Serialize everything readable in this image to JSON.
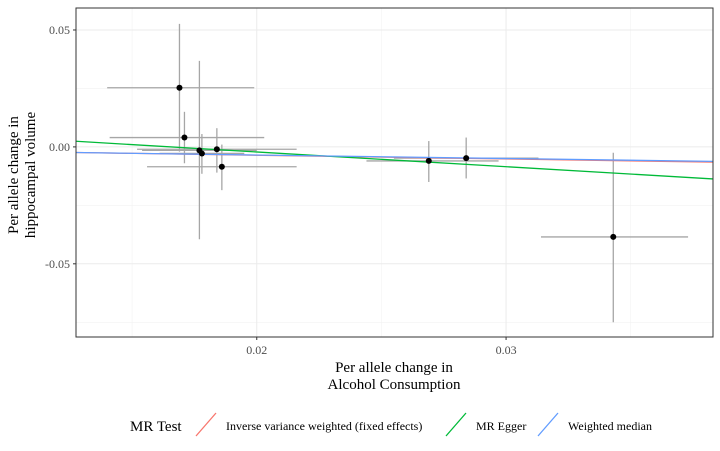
{
  "chart_data": {
    "type": "scatter",
    "title": "",
    "xlabel": [
      "Per allele change in",
      "Alcohol Consumption"
    ],
    "ylabel": [
      "Per allele change in",
      "hippocampal volume"
    ],
    "xlim": [
      0.01275,
      0.0383
    ],
    "ylim": [
      -0.0813,
      0.0594
    ],
    "x_ticks": [
      0.02,
      0.03
    ],
    "x_tick_labels": [
      "0.02",
      "0.03"
    ],
    "y_ticks": [
      0.05,
      0.0,
      -0.05
    ],
    "y_tick_labels": [
      "0.05",
      "0.00",
      "-0.05"
    ],
    "grid": true,
    "points": [
      {
        "x": 0.0169,
        "y": 0.0253,
        "xlo": 0.014,
        "xhi": 0.0199,
        "ylo": -0.002,
        "yhi": 0.0526
      },
      {
        "x": 0.0171,
        "y": 0.004,
        "xlo": 0.0141,
        "xhi": 0.0203,
        "ylo": -0.007,
        "yhi": 0.015
      },
      {
        "x": 0.0177,
        "y": -0.0015,
        "xlo": 0.0154,
        "xhi": 0.02,
        "ylo": -0.0395,
        "yhi": 0.0368
      },
      {
        "x": 0.0178,
        "y": -0.0028,
        "xlo": 0.0161,
        "xhi": 0.0195,
        "ylo": -0.0115,
        "yhi": 0.0055
      },
      {
        "x": 0.0184,
        "y": -0.001,
        "xlo": 0.0152,
        "xhi": 0.0216,
        "ylo": -0.011,
        "yhi": 0.008
      },
      {
        "x": 0.0186,
        "y": -0.0085,
        "xlo": 0.0156,
        "xhi": 0.0216,
        "ylo": -0.0185,
        "yhi": 0.001
      },
      {
        "x": 0.0269,
        "y": -0.006,
        "xlo": 0.0244,
        "xhi": 0.0297,
        "ylo": -0.015,
        "yhi": 0.0025
      },
      {
        "x": 0.0284,
        "y": -0.0048,
        "xlo": 0.0255,
        "xhi": 0.0313,
        "ylo": -0.0135,
        "yhi": 0.004
      },
      {
        "x": 0.0343,
        "y": -0.0385,
        "xlo": 0.0314,
        "xhi": 0.0373,
        "ylo": -0.075,
        "yhi": -0.0025
      }
    ],
    "series": [
      {
        "name": "Inverse variance weighted (fixed effects)",
        "color": "#F8766D",
        "y_at_xmin": -0.0024,
        "y_at_xmax": -0.0065
      },
      {
        "name": "MR Egger",
        "color": "#00BA38",
        "y_at_xmin": 0.0024,
        "y_at_xmax": -0.0137
      },
      {
        "name": "Weighted median",
        "color": "#619CFF",
        "y_at_xmin": -0.0024,
        "y_at_xmax": -0.0062
      }
    ],
    "legend": {
      "title": "MR Test",
      "position": "bottom"
    }
  }
}
